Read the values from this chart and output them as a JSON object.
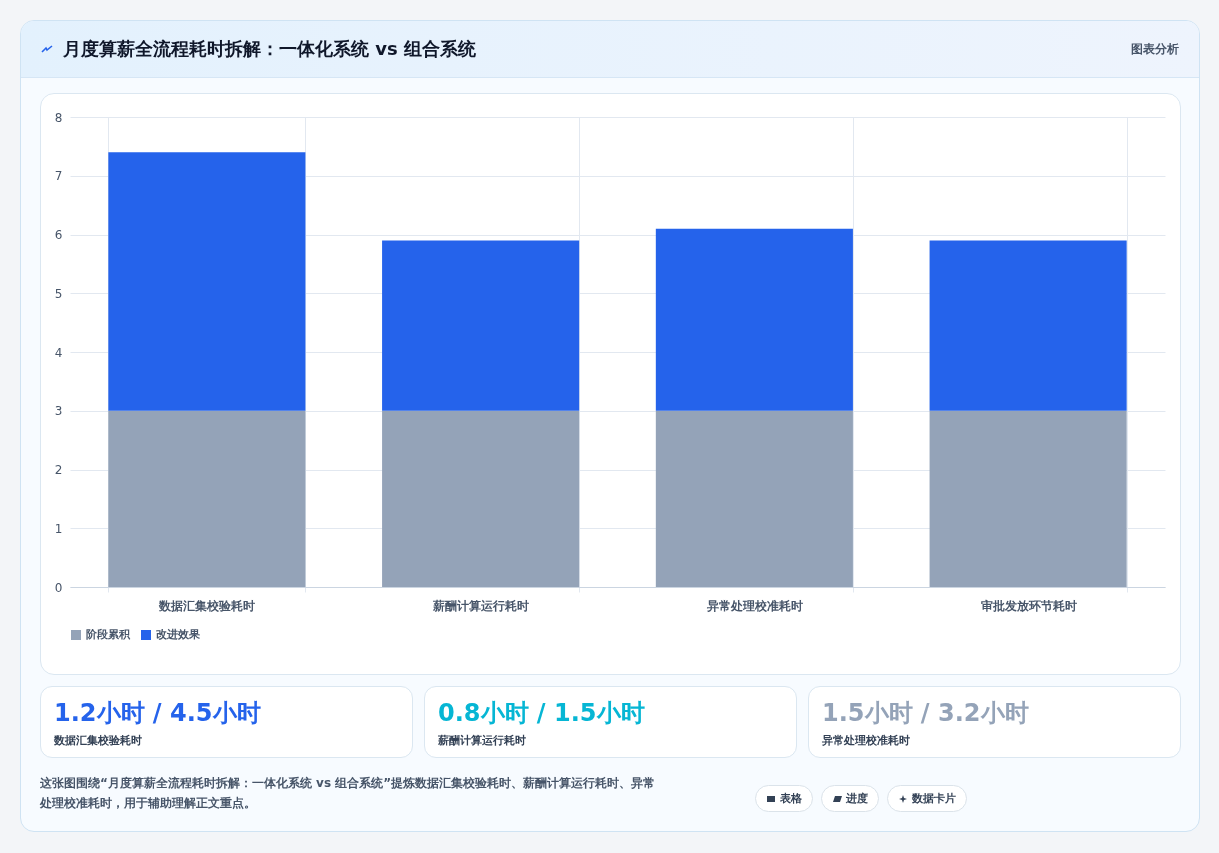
{
  "chart_data": [
    {
      "type": "bar",
      "title": "月度算薪全流程耗时拆解：一体化系统 vs 组合系统",
      "categories": [
        "数据汇集校验耗时",
        "薪酬计算运行耗时",
        "异常处理校准耗时",
        "审批发放环节耗时"
      ],
      "series": [
        {
          "name": "阶段累积",
          "color": "#94a3b8",
          "values": [
            3,
            3,
            3,
            3
          ]
        },
        {
          "name": "改进效果",
          "color": "#2563eb",
          "values": [
            4.4,
            2.9,
            3.1,
            2.9
          ]
        }
      ],
      "stacked": true,
      "ylim": [
        0,
        8
      ],
      "yticks": [
        0,
        1,
        2,
        3,
        4,
        5,
        6,
        7,
        8
      ],
      "grid": true,
      "legend": "bottom",
      "annotations": [
        "图表分析",
        "这张图围绕“月度算薪全流程耗时拆解：一体化系统 vs 组合系统”提炼数据汇集校验耗时、薪酬计算运行耗时、异常处理校准耗时，用于辅助理解正文重点。",
        "表格",
        "进度",
        "数据卡片"
      ]
    },
    {
      "type": "other",
      "categories": [
        "数据汇集校验耗时",
        "薪酬计算运行耗时",
        "异常处理校准耗时"
      ],
      "annotations": [
        "1.2小时 / 4.5小时",
        "0.8小时 / 1.5小时",
        "1.5小时 / 3.2小时"
      ]
    }
  ]
}
